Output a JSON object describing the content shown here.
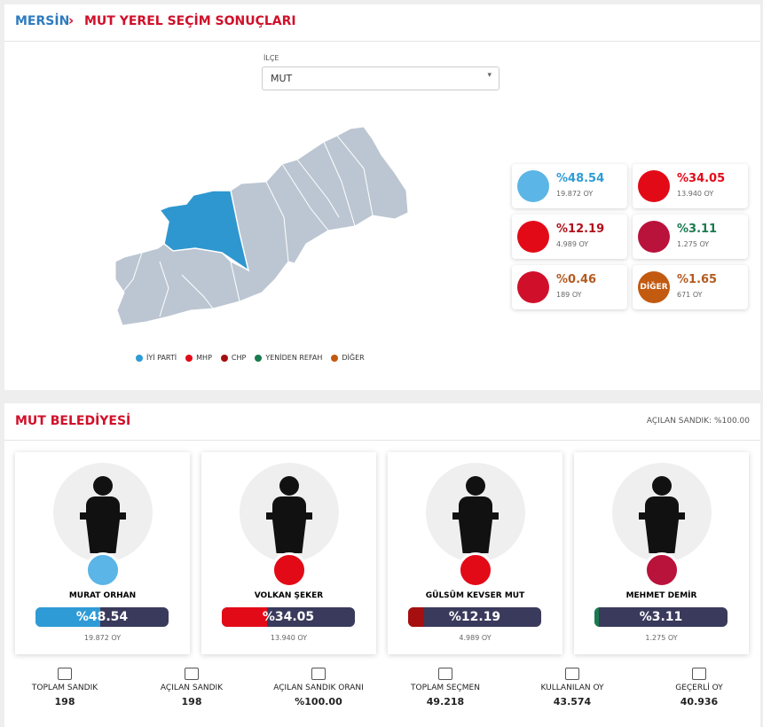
{
  "header": {
    "province": "MERSİN",
    "title": "MUT YEREL SEÇİM SONUÇLARI"
  },
  "filter": {
    "label": "İLÇE",
    "selected": "MUT"
  },
  "parties": [
    {
      "share": 48.54,
      "share_label": "%48.54",
      "votes": "19.872 OY",
      "color": "#2f9bd6",
      "logo_color": "#5bb5e6"
    },
    {
      "share": 34.05,
      "share_label": "%34.05",
      "votes": "13.940 OY",
      "color": "#e30a17",
      "logo_color": "#e30a17"
    },
    {
      "share": 12.19,
      "share_label": "%12.19",
      "votes": "4.989 OY",
      "color": "#b0101a",
      "logo_color": "#e30a17"
    },
    {
      "share": 3.11,
      "share_label": "%3.11",
      "votes": "1.275 OY",
      "color": "#1a7a4f",
      "logo_color": "#b9123b"
    },
    {
      "share": 0.46,
      "share_label": "%0.46",
      "votes": "189 OY",
      "color": "#b35a1f",
      "logo_color": "#d0102a"
    },
    {
      "share": 1.65,
      "share_label": "%1.65",
      "votes": "671 OY",
      "color": "#b35a1f",
      "logo_color": "#c25a10",
      "logo_text": "DİĞER"
    }
  ],
  "legend": [
    {
      "name": "İYİ PARTİ",
      "color": "#2f9bd6"
    },
    {
      "name": "MHP",
      "color": "#e30a17"
    },
    {
      "name": "CHP",
      "color": "#a50f0f"
    },
    {
      "name": "YENİDEN REFAH",
      "color": "#1a7a4f"
    },
    {
      "name": "DİĞER",
      "color": "#c25a10"
    }
  ],
  "municipality": {
    "title": "MUT BELEDİYESİ",
    "opened": "AÇILAN SANDIK: %100.00"
  },
  "candidates": [
    {
      "name": "MURAT ORHAN",
      "share": 48.54,
      "share_label": "%48.54",
      "votes": "19.872 OY",
      "color": "#2f9bd6",
      "logo_color": "#5bb5e6"
    },
    {
      "name": "VOLKAN ŞEKER",
      "share": 34.05,
      "share_label": "%34.05",
      "votes": "13.940 OY",
      "color": "#e30a17",
      "logo_color": "#e30a17"
    },
    {
      "name": "GÜLSÜM KEVSER MUT",
      "share": 12.19,
      "share_label": "%12.19",
      "votes": "4.989 OY",
      "color": "#a50f0f",
      "logo_color": "#e30a17"
    },
    {
      "name": "MEHMET DEMİR",
      "share": 3.11,
      "share_label": "%3.11",
      "votes": "1.275 OY",
      "color": "#1a7a4f",
      "logo_color": "#b9123b"
    }
  ],
  "stats": [
    {
      "label": "TOPLAM SANDIK",
      "value": "198"
    },
    {
      "label": "AÇILAN SANDIK",
      "value": "198"
    },
    {
      "label": "AÇILAN SANDIK ORANI",
      "value": "%100.00"
    },
    {
      "label": "TOPLAM SEÇMEN",
      "value": "49.218"
    },
    {
      "label": "KULLANILAN OY",
      "value": "43.574"
    },
    {
      "label": "GEÇERLİ OY",
      "value": "40.936"
    }
  ]
}
